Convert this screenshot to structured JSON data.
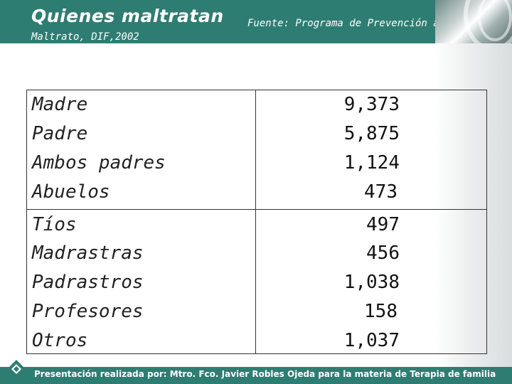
{
  "header": {
    "title": "Quienes maltratan",
    "source_line1": "Fuente: Programa de Prevención al",
    "source_line2": "Maltrato, DIF,2002"
  },
  "table": {
    "rows": [
      {
        "label": "Madre",
        "value": "9,373"
      },
      {
        "label": "Padre",
        "value": "5,875"
      },
      {
        "label": "Ambos padres",
        "value": "1,124"
      },
      {
        "label": "Abuelos",
        "value": "473"
      },
      {
        "label": "Tíos",
        "value": "497"
      },
      {
        "label": "Madrastras",
        "value": "456"
      },
      {
        "label": "Padrastros",
        "value": "1,038"
      },
      {
        "label": "Profesores",
        "value": "158"
      },
      {
        "label": "Otros",
        "value": "1,037"
      }
    ]
  },
  "footer": {
    "text": "Presentación realizada por: Mtro. Fco. Javier Robles Ojeda para la materia de Terapia de familia"
  },
  "colors": {
    "header_bg": "#2e7d72",
    "footer_bg": "#2e7d72",
    "text_white": "#ffffff",
    "logo": "#2e7d72"
  },
  "icons": {
    "logo": "diamond-logo-icon"
  }
}
